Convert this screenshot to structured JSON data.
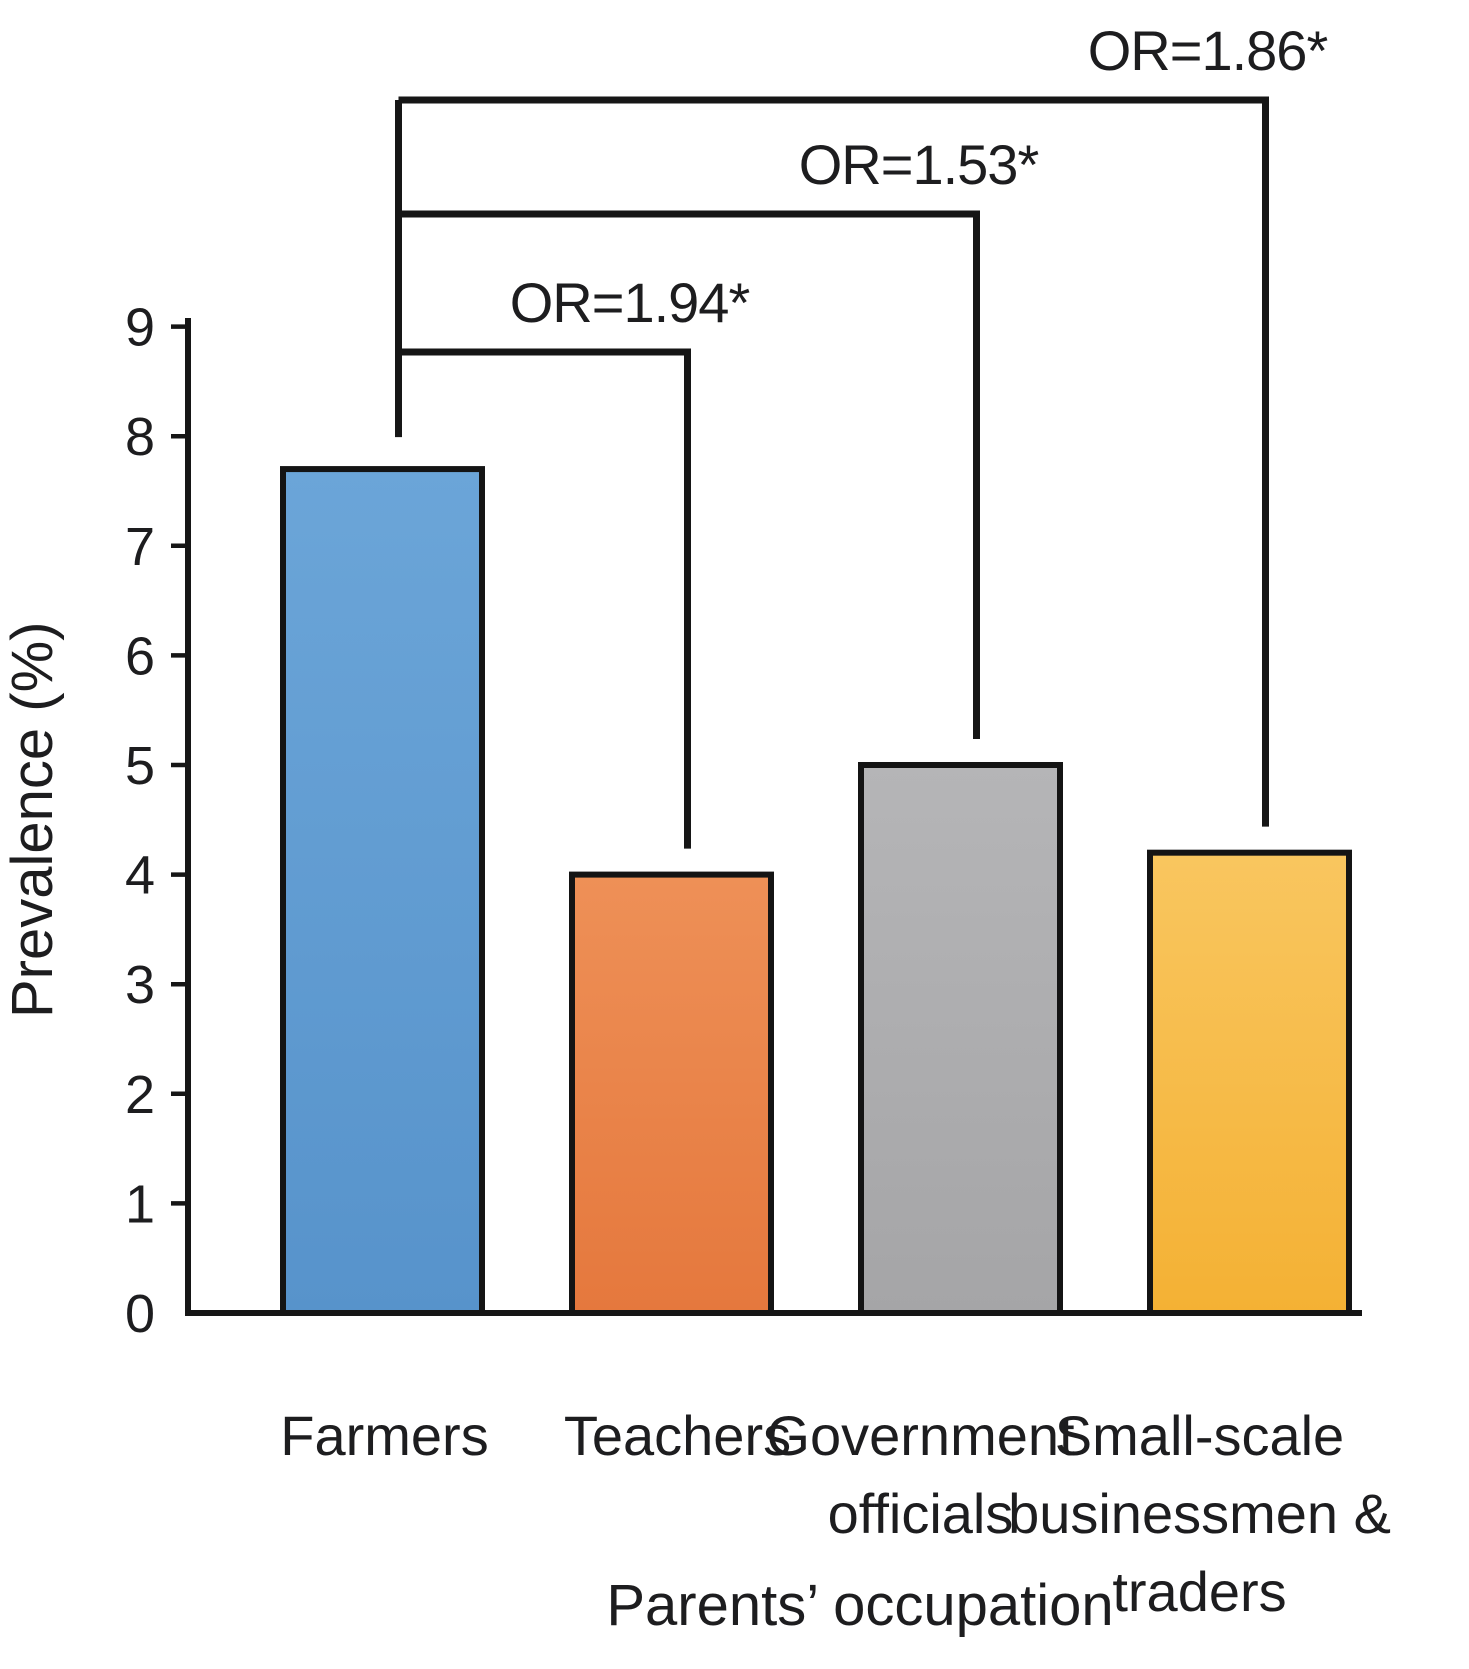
{
  "figure": {
    "background": "#ffffff",
    "text_color": "#1d1d1f",
    "line_color": "#161616"
  },
  "chart_data": {
    "type": "bar",
    "title": "",
    "xlabel": "Parents’ occupation",
    "ylabel": "Prevalence (%)",
    "ylim": [
      0,
      9
    ],
    "yticks": [
      0,
      1,
      2,
      3,
      4,
      5,
      6,
      7,
      8,
      9
    ],
    "grid": false,
    "legend": "none",
    "categories": [
      "Farmers",
      "Teachers",
      "Government officials",
      "Small-scale businessmen & traders"
    ],
    "category_label_lines": [
      [
        "Farmers"
      ],
      [
        "Teachers"
      ],
      [
        "Government",
        "officials"
      ],
      [
        "Small-scale",
        "businessmen &",
        "traders"
      ]
    ],
    "values": [
      7.7,
      4.0,
      5.0,
      4.2
    ],
    "bar_colors": [
      "#5793CB",
      "#E5783D",
      "#A5A5A7",
      "#F4B134"
    ],
    "bar_colors_light": [
      "#6BA5D8",
      "#EE9057",
      "#B5B5B7",
      "#F9C65F"
    ],
    "bar_edge_color": "#141414",
    "comparisons": [
      {
        "label": "OR=1.94*",
        "from": 0,
        "to": 1
      },
      {
        "label": "OR=1.53*",
        "from": 0,
        "to": 2
      },
      {
        "label": "OR=1.86*",
        "from": 0,
        "to": 3
      }
    ]
  }
}
